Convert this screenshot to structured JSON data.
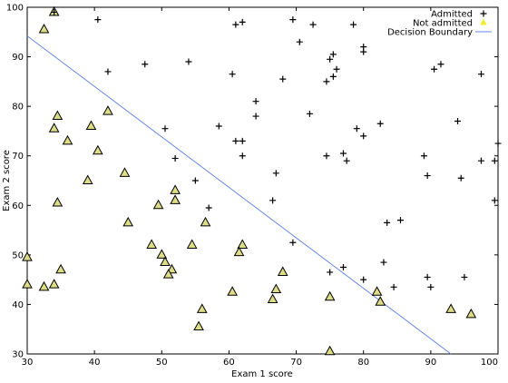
{
  "chart_data": {
    "type": "scatter",
    "title": "",
    "xlabel": "Exam 1 score",
    "ylabel": "Exam 2 score",
    "xlim": [
      30,
      100
    ],
    "ylim": [
      30,
      100
    ],
    "x_ticks": [
      30,
      40,
      50,
      60,
      70,
      80,
      90,
      100
    ],
    "y_ticks": [
      30,
      40,
      50,
      60,
      70,
      80,
      90,
      100
    ],
    "grid": false,
    "legend": {
      "placement": "top-right",
      "entries": [
        "Admitted",
        "Not admitted",
        "Decision Boundary"
      ]
    },
    "series": [
      {
        "name": "Admitted",
        "marker": "plus",
        "color": "#000000",
        "points": [
          [
            34.0,
            99.0
          ],
          [
            40.5,
            97.5
          ],
          [
            61.0,
            96.5
          ],
          [
            62.0,
            97.0
          ],
          [
            69.5,
            97.5
          ],
          [
            72.5,
            96.5
          ],
          [
            78.5,
            96.5
          ],
          [
            70.5,
            93.0
          ],
          [
            80.0,
            92.0
          ],
          [
            80.0,
            91.0
          ],
          [
            75.0,
            89.5
          ],
          [
            75.5,
            90.5
          ],
          [
            76.0,
            87.5
          ],
          [
            75.5,
            86.0
          ],
          [
            74.5,
            85.0
          ],
          [
            42.0,
            87.0
          ],
          [
            47.5,
            88.5
          ],
          [
            54.0,
            89.0
          ],
          [
            60.5,
            86.5
          ],
          [
            68.0,
            85.5
          ],
          [
            90.5,
            87.5
          ],
          [
            91.5,
            88.5
          ],
          [
            97.5,
            86.5
          ],
          [
            64.0,
            81.0
          ],
          [
            64.0,
            78.0
          ],
          [
            72.0,
            78.5
          ],
          [
            82.5,
            76.5
          ],
          [
            79.0,
            75.5
          ],
          [
            80.0,
            74.0
          ],
          [
            94.0,
            77.0
          ],
          [
            50.5,
            75.5
          ],
          [
            58.5,
            76.0
          ],
          [
            61.0,
            73.0
          ],
          [
            62.0,
            73.0
          ],
          [
            52.0,
            69.5
          ],
          [
            62.0,
            70.0
          ],
          [
            74.5,
            70.0
          ],
          [
            77.0,
            70.5
          ],
          [
            77.5,
            69.0
          ],
          [
            89.0,
            70.0
          ],
          [
            97.5,
            69.0
          ],
          [
            99.5,
            69.0
          ],
          [
            100.0,
            72.5
          ],
          [
            67.0,
            66.5
          ],
          [
            89.5,
            66.0
          ],
          [
            94.5,
            65.5
          ],
          [
            55.0,
            65.0
          ],
          [
            57.0,
            59.5
          ],
          [
            66.5,
            61.0
          ],
          [
            99.5,
            61.0
          ],
          [
            83.5,
            56.5
          ],
          [
            85.5,
            57.0
          ],
          [
            69.5,
            52.5
          ],
          [
            77.0,
            47.5
          ],
          [
            75.0,
            46.5
          ],
          [
            83.0,
            48.5
          ],
          [
            80.0,
            45.0
          ],
          [
            89.5,
            45.5
          ],
          [
            95.0,
            45.5
          ],
          [
            84.5,
            43.5
          ],
          [
            90.0,
            43.5
          ]
        ]
      },
      {
        "name": "Not admitted",
        "marker": "triangle",
        "color": "#dddd88",
        "points": [
          [
            34.0,
            99.0
          ],
          [
            32.5,
            95.5
          ],
          [
            34.5,
            78.0
          ],
          [
            34.0,
            75.5
          ],
          [
            36.0,
            73.0
          ],
          [
            39.5,
            76.0
          ],
          [
            42.0,
            79.0
          ],
          [
            40.5,
            71.0
          ],
          [
            44.5,
            66.5
          ],
          [
            39.0,
            65.0
          ],
          [
            52.0,
            63.0
          ],
          [
            52.0,
            61.0
          ],
          [
            34.5,
            60.5
          ],
          [
            49.5,
            60.0
          ],
          [
            45.0,
            56.5
          ],
          [
            56.5,
            56.5
          ],
          [
            48.5,
            52.0
          ],
          [
            54.5,
            52.0
          ],
          [
            62.0,
            52.0
          ],
          [
            61.5,
            50.5
          ],
          [
            50.0,
            50.0
          ],
          [
            30.0,
            49.5
          ],
          [
            50.5,
            48.5
          ],
          [
            51.5,
            47.0
          ],
          [
            35.0,
            47.0
          ],
          [
            51.0,
            46.0
          ],
          [
            30.0,
            44.0
          ],
          [
            34.0,
            44.0
          ],
          [
            32.5,
            43.5
          ],
          [
            68.0,
            46.5
          ],
          [
            60.5,
            42.5
          ],
          [
            67.0,
            43.0
          ],
          [
            66.5,
            41.0
          ],
          [
            75.0,
            41.5
          ],
          [
            82.0,
            42.5
          ],
          [
            82.5,
            40.5
          ],
          [
            56.0,
            39.0
          ],
          [
            55.5,
            35.5
          ],
          [
            93.0,
            39.0
          ],
          [
            96.0,
            38.0
          ],
          [
            75.0,
            30.5
          ]
        ]
      }
    ],
    "decision_boundary": {
      "name": "Decision Boundary",
      "color": "#6688ee",
      "points": [
        [
          30,
          94.2
        ],
        [
          93,
          30
        ]
      ]
    }
  }
}
